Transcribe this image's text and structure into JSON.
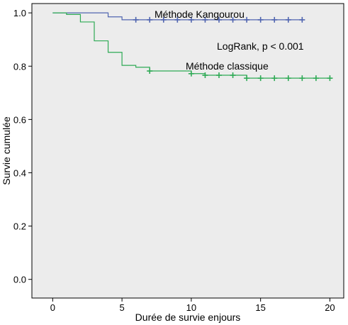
{
  "chart_data": {
    "type": "line",
    "xlabel": "Durée de survie enjours",
    "ylabel": "Survie cumulée",
    "xlim": [
      -1.5,
      21.0
    ],
    "ylim": [
      -0.07,
      1.035
    ],
    "xticks": [
      0,
      5,
      10,
      15,
      20
    ],
    "yticks": [
      0.0,
      0.2,
      0.4,
      0.6,
      0.8,
      1.0
    ],
    "xtick_labels": [
      "0",
      "5",
      "10",
      "15",
      "20"
    ],
    "ytick_labels": [
      "0.0",
      "0.2",
      "0.4",
      "0.6",
      "0.8",
      "1.0"
    ],
    "annotation": "LogRank, p < 0.001",
    "grid": false,
    "background": "#ececec",
    "series": [
      {
        "name": "Méthode Kangourou",
        "color": "#5065b0",
        "steps": [
          [
            0,
            1.0
          ],
          [
            4,
            0.985
          ],
          [
            5,
            0.974
          ],
          [
            18,
            0.974
          ]
        ],
        "censored_x": [
          6,
          7,
          8,
          9,
          10,
          11,
          12,
          13,
          14,
          15,
          16,
          17,
          18
        ]
      },
      {
        "name": "Méthode classique",
        "color": "#2eaa55",
        "steps": [
          [
            0,
            1.0
          ],
          [
            1,
            0.994
          ],
          [
            2,
            0.966
          ],
          [
            3,
            0.895
          ],
          [
            4,
            0.852
          ],
          [
            5,
            0.803
          ],
          [
            6,
            0.796
          ],
          [
            7,
            0.782
          ],
          [
            10,
            0.772
          ],
          [
            11,
            0.766
          ],
          [
            14,
            0.755
          ],
          [
            20,
            0.755
          ]
        ],
        "censored_x": [
          7,
          10,
          11,
          12,
          13,
          14,
          15,
          16,
          17,
          18,
          19,
          20
        ]
      }
    ]
  }
}
